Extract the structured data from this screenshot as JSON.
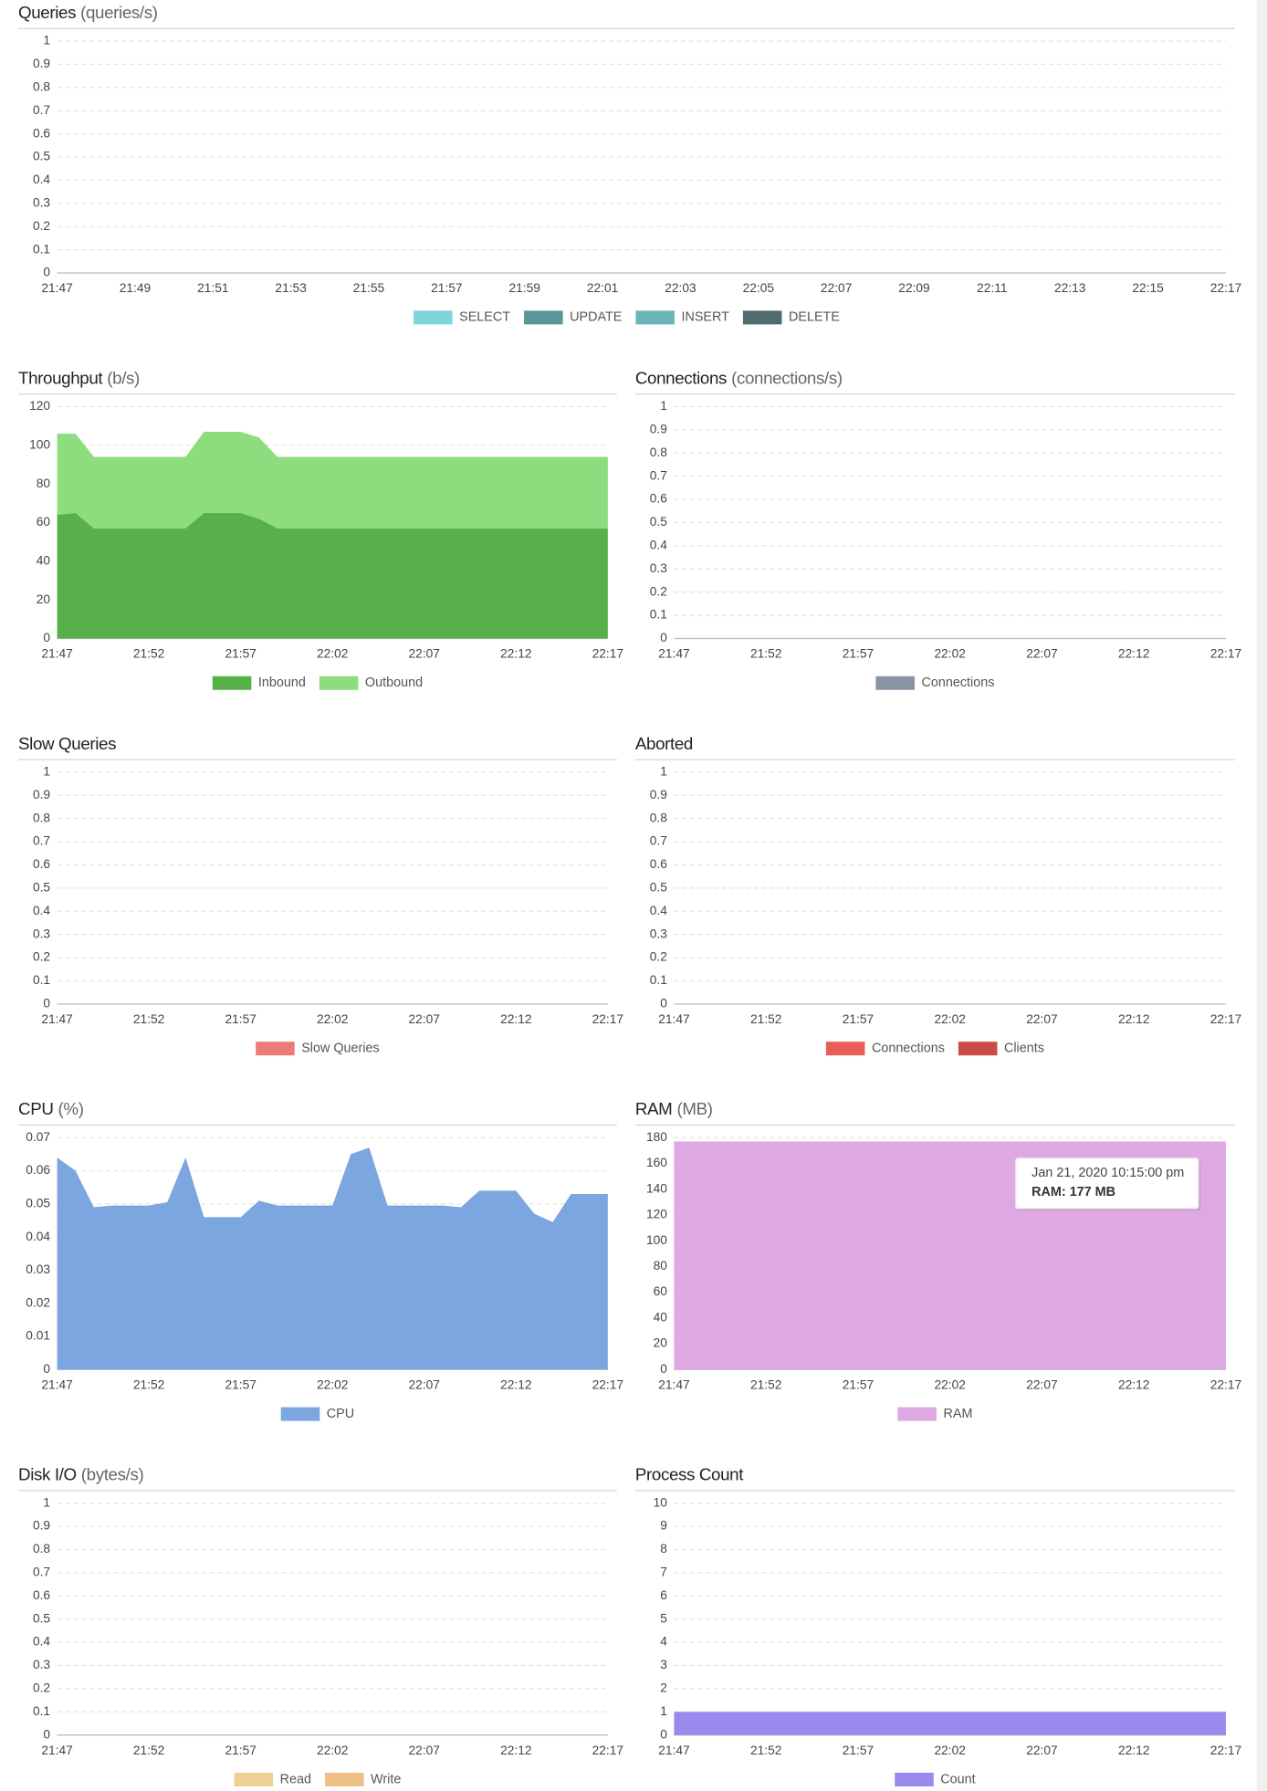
{
  "chart_data": [
    {
      "type": "area",
      "title": "Queries",
      "unit": "(queries/s)",
      "xticks": [
        "21:47",
        "21:49",
        "21:51",
        "21:53",
        "21:55",
        "21:57",
        "21:59",
        "22:01",
        "22:03",
        "22:05",
        "22:07",
        "22:09",
        "22:11",
        "22:13",
        "22:15",
        "22:17"
      ],
      "ylim": [
        0,
        1
      ],
      "yticks": [
        0,
        0.1,
        0.2,
        0.3,
        0.4,
        0.5,
        0.6,
        0.7,
        0.8,
        0.9,
        1
      ],
      "grid": true,
      "series": [
        {
          "name": "SELECT",
          "color": "#7fd3dc"
        },
        {
          "name": "UPDATE",
          "color": "#5b9597"
        },
        {
          "name": "INSERT",
          "color": "#6ab5b8"
        },
        {
          "name": "DELETE",
          "color": "#4f6b6e"
        }
      ]
    },
    {
      "type": "area",
      "title": "Throughput",
      "unit": "(b/s)",
      "stacked": true,
      "x": [
        "21:47",
        "21:48",
        "21:49",
        "21:50",
        "21:51",
        "21:52",
        "21:53",
        "21:54",
        "21:55",
        "21:56",
        "21:57",
        "21:58",
        "21:59",
        "22:00",
        "22:01",
        "22:02",
        "22:03",
        "22:04",
        "22:05",
        "22:06",
        "22:07",
        "22:08",
        "22:09",
        "22:10",
        "22:11",
        "22:12",
        "22:13",
        "22:14",
        "22:15",
        "22:16",
        "22:17"
      ],
      "xticks": [
        "21:47",
        "21:52",
        "21:57",
        "22:02",
        "22:07",
        "22:12",
        "22:17"
      ],
      "ylim": [
        0,
        120
      ],
      "yticks": [
        0,
        20,
        40,
        60,
        80,
        100,
        120
      ],
      "grid": true,
      "series": [
        {
          "name": "Inbound",
          "color": "#58b04a",
          "values": [
            64,
            65,
            57,
            57,
            57,
            57,
            57,
            57,
            65,
            65,
            65,
            62,
            57,
            57,
            57,
            57,
            57,
            57,
            57,
            57,
            57,
            57,
            57,
            57,
            57,
            57,
            57,
            57,
            57,
            57,
            57
          ]
        },
        {
          "name": "Outbound",
          "color": "#8ddc7d",
          "values": [
            42,
            41,
            37,
            37,
            37,
            37,
            37,
            37,
            42,
            42,
            42,
            42,
            37,
            37,
            37,
            37,
            37,
            37,
            37,
            37,
            37,
            37,
            37,
            37,
            37,
            37,
            37,
            37,
            37,
            37,
            37
          ]
        }
      ]
    },
    {
      "type": "area",
      "title": "Connections",
      "unit": "(connections/s)",
      "xticks": [
        "21:47",
        "21:52",
        "21:57",
        "22:02",
        "22:07",
        "22:12",
        "22:17"
      ],
      "ylim": [
        0,
        1
      ],
      "yticks": [
        0,
        0.1,
        0.2,
        0.3,
        0.4,
        0.5,
        0.6,
        0.7,
        0.8,
        0.9,
        1
      ],
      "grid": true,
      "series": [
        {
          "name": "Connections",
          "color": "#8a93a3"
        }
      ]
    },
    {
      "type": "area",
      "title": "Slow Queries",
      "xticks": [
        "21:47",
        "21:52",
        "21:57",
        "22:02",
        "22:07",
        "22:12",
        "22:17"
      ],
      "ylim": [
        0,
        1
      ],
      "yticks": [
        0,
        0.1,
        0.2,
        0.3,
        0.4,
        0.5,
        0.6,
        0.7,
        0.8,
        0.9,
        1
      ],
      "grid": true,
      "series": [
        {
          "name": "Slow Queries",
          "color": "#ec7b78"
        }
      ]
    },
    {
      "type": "area",
      "title": "Aborted",
      "xticks": [
        "21:47",
        "21:52",
        "21:57",
        "22:02",
        "22:07",
        "22:12",
        "22:17"
      ],
      "ylim": [
        0,
        1
      ],
      "yticks": [
        0,
        0.1,
        0.2,
        0.3,
        0.4,
        0.5,
        0.6,
        0.7,
        0.8,
        0.9,
        1
      ],
      "grid": true,
      "series": [
        {
          "name": "Connections",
          "color": "#e85e57"
        },
        {
          "name": "Clients",
          "color": "#cc4a48"
        }
      ]
    },
    {
      "type": "area",
      "title": "CPU",
      "unit": "(%)",
      "x": [
        "21:47",
        "21:48",
        "21:49",
        "21:50",
        "21:51",
        "21:52",
        "21:53",
        "21:54",
        "21:55",
        "21:56",
        "21:57",
        "21:58",
        "21:59",
        "22:00",
        "22:01",
        "22:02",
        "22:03",
        "22:04",
        "22:05",
        "22:06",
        "22:07",
        "22:08",
        "22:09",
        "22:10",
        "22:11",
        "22:12",
        "22:13",
        "22:14",
        "22:15",
        "22:16",
        "22:17"
      ],
      "xticks": [
        "21:47",
        "21:52",
        "21:57",
        "22:02",
        "22:07",
        "22:12",
        "22:17"
      ],
      "ylim": [
        0,
        0.07
      ],
      "yticks": [
        0,
        0.01,
        0.02,
        0.03,
        0.04,
        0.05,
        0.06,
        0.07
      ],
      "grid": true,
      "series": [
        {
          "name": "CPU",
          "color": "#7ba6e0",
          "values": [
            0.064,
            0.06,
            0.049,
            0.0495,
            0.0495,
            0.0495,
            0.0505,
            0.064,
            0.046,
            0.046,
            0.046,
            0.051,
            0.0495,
            0.0495,
            0.0495,
            0.0495,
            0.065,
            0.067,
            0.0495,
            0.0495,
            0.0495,
            0.0495,
            0.049,
            0.054,
            0.054,
            0.054,
            0.047,
            0.0445,
            0.053,
            0.053,
            0.053
          ]
        }
      ]
    },
    {
      "type": "area",
      "title": "RAM",
      "unit": "(MB)",
      "x": [
        "21:47",
        "21:48",
        "21:49",
        "21:50",
        "21:51",
        "21:52",
        "21:53",
        "21:54",
        "21:55",
        "21:56",
        "21:57",
        "21:58",
        "21:59",
        "22:00",
        "22:01",
        "22:02",
        "22:03",
        "22:04",
        "22:05",
        "22:06",
        "22:07",
        "22:08",
        "22:09",
        "22:10",
        "22:11",
        "22:12",
        "22:13",
        "22:14",
        "22:15",
        "22:16",
        "22:17"
      ],
      "xticks": [
        "21:47",
        "21:52",
        "21:57",
        "22:02",
        "22:07",
        "22:12",
        "22:17"
      ],
      "ylim": [
        0,
        180
      ],
      "yticks": [
        0,
        20,
        40,
        60,
        80,
        100,
        120,
        140,
        160,
        180
      ],
      "grid": true,
      "series": [
        {
          "name": "RAM",
          "color": "#dea8e3",
          "values": [
            177,
            177,
            177,
            177,
            177,
            177,
            177,
            177,
            177,
            177,
            177,
            177,
            177,
            177,
            177,
            177,
            177,
            177,
            177,
            177,
            177,
            177,
            177,
            177,
            177,
            177,
            177,
            177,
            177,
            177,
            177
          ]
        }
      ],
      "tooltip": {
        "title": "Jan 21, 2020 10:15:00 pm",
        "text": "RAM: 177 MB"
      }
    },
    {
      "type": "area",
      "title": "Disk I/O",
      "unit": "(bytes/s)",
      "xticks": [
        "21:47",
        "21:52",
        "21:57",
        "22:02",
        "22:07",
        "22:12",
        "22:17"
      ],
      "ylim": [
        0,
        1
      ],
      "yticks": [
        0,
        0.1,
        0.2,
        0.3,
        0.4,
        0.5,
        0.6,
        0.7,
        0.8,
        0.9,
        1
      ],
      "grid": true,
      "series": [
        {
          "name": "Read",
          "color": "#f0cf95"
        },
        {
          "name": "Write",
          "color": "#f0bf88"
        }
      ]
    },
    {
      "type": "area",
      "title": "Process Count",
      "x": [
        "21:47",
        "21:48",
        "21:49",
        "21:50",
        "21:51",
        "21:52",
        "21:53",
        "21:54",
        "21:55",
        "21:56",
        "21:57",
        "21:58",
        "21:59",
        "22:00",
        "22:01",
        "22:02",
        "22:03",
        "22:04",
        "22:05",
        "22:06",
        "22:07",
        "22:08",
        "22:09",
        "22:10",
        "22:11",
        "22:12",
        "22:13",
        "22:14",
        "22:15",
        "22:16",
        "22:17"
      ],
      "xticks": [
        "21:47",
        "21:52",
        "21:57",
        "22:02",
        "22:07",
        "22:12",
        "22:17"
      ],
      "ylim": [
        0,
        10
      ],
      "yticks": [
        0,
        1,
        2,
        3,
        4,
        5,
        6,
        7,
        8,
        9,
        10
      ],
      "grid": true,
      "series": [
        {
          "name": "Count",
          "color": "#9b8aee",
          "values": [
            1,
            1,
            1,
            1,
            1,
            1,
            1,
            1,
            1,
            1,
            1,
            1,
            1,
            1,
            1,
            1,
            1,
            1,
            1,
            1,
            1,
            1,
            1,
            1,
            1,
            1,
            1,
            1,
            1,
            1,
            1
          ]
        }
      ]
    }
  ]
}
